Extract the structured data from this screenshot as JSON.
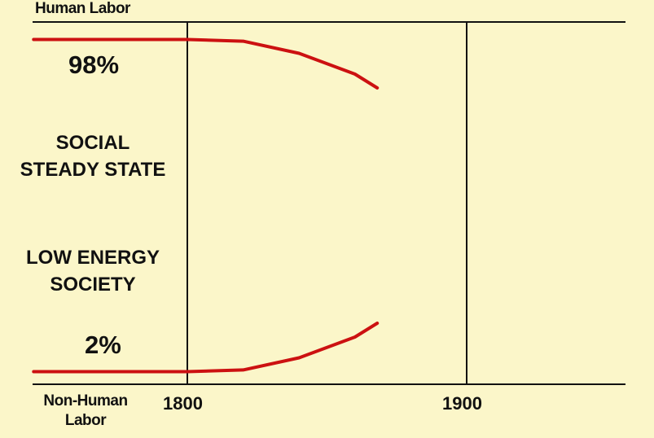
{
  "chart_data": {
    "type": "line",
    "xlabel_top": "Human Labor",
    "xlabel_bottom_line1": "Non-Human",
    "xlabel_bottom_line2": "Labor",
    "x_ticks": [
      "1800",
      "1900"
    ],
    "y_ticks": [],
    "xlim": [
      1745,
      1955
    ],
    "ylim": [
      0,
      100
    ],
    "series": [
      {
        "x": [
          1745,
          1800,
          1820,
          1840,
          1860,
          1868
        ],
        "values": [
          98,
          98,
          97.5,
          94,
          88,
          84
        ]
      },
      {
        "x": [
          1745,
          1800,
          1820,
          1840,
          1860,
          1868
        ],
        "values": [
          2,
          2,
          2.5,
          6,
          12,
          16
        ]
      }
    ],
    "annotations": {
      "pct_top": "98%",
      "pct_bottom": "2%",
      "state_line1": "SOCIAL",
      "state_line2": "STEADY STATE",
      "society_line1": "LOW ENERGY",
      "society_line2": "SOCIETY"
    },
    "colors": {
      "curve": "#cc1111",
      "axis": "#111111",
      "background": "#fbf6c9"
    }
  }
}
